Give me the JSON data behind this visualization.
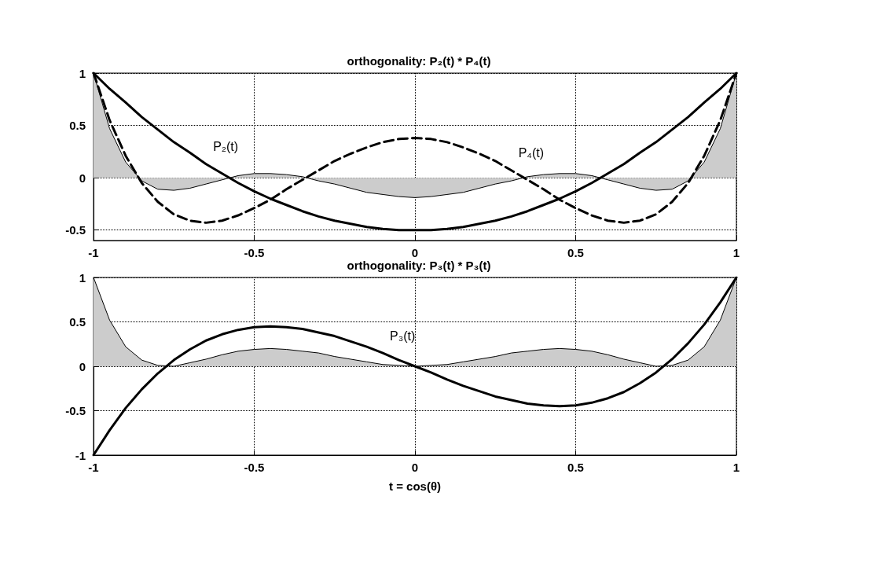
{
  "chart_data": [
    {
      "type": "line",
      "title": "orthogonality: P₂(t) * P₄(t)",
      "x": [
        -1,
        -0.95,
        -0.9,
        -0.85,
        -0.8,
        -0.75,
        -0.7,
        -0.65,
        -0.6,
        -0.55,
        -0.5,
        -0.45,
        -0.4,
        -0.35,
        -0.3,
        -0.25,
        -0.2,
        -0.15,
        -0.1,
        -0.05,
        0,
        0.05,
        0.1,
        0.15,
        0.2,
        0.25,
        0.3,
        0.35,
        0.4,
        0.45,
        0.5,
        0.55,
        0.6,
        0.65,
        0.7,
        0.75,
        0.8,
        0.85,
        0.9,
        0.95,
        1
      ],
      "series": [
        {
          "type": "area",
          "color": "#cccccc",
          "values": [
            1,
            0.47,
            0.15,
            -0.03,
            -0.11,
            -0.12,
            -0.1,
            -0.06,
            -0.02,
            0.02,
            0.04,
            0.04,
            0.03,
            0.01,
            -0.03,
            -0.06,
            -0.1,
            -0.14,
            -0.16,
            -0.18,
            -0.19,
            -0.18,
            -0.16,
            -0.14,
            -0.1,
            -0.06,
            -0.03,
            0.01,
            0.03,
            0.04,
            0.04,
            0.02,
            -0.02,
            -0.06,
            -0.1,
            -0.12,
            -0.11,
            -0.03,
            0.15,
            0.47,
            1
          ]
        },
        {
          "name": "P₂(t)",
          "color": "#000000",
          "line_style": "solid",
          "values": [
            1,
            0.85,
            0.72,
            0.58,
            0.46,
            0.34,
            0.24,
            0.13,
            0.04,
            -0.05,
            -0.13,
            -0.2,
            -0.26,
            -0.32,
            -0.37,
            -0.41,
            -0.44,
            -0.47,
            -0.49,
            -0.5,
            -0.5,
            -0.5,
            -0.49,
            -0.47,
            -0.44,
            -0.41,
            -0.37,
            -0.32,
            -0.26,
            -0.2,
            -0.13,
            -0.05,
            0.04,
            0.13,
            0.24,
            0.34,
            0.46,
            0.58,
            0.72,
            0.85,
            1
          ]
        },
        {
          "name": "P₄(t)",
          "color": "#000000",
          "line_style": "dashed",
          "values": [
            1,
            0.55,
            0.21,
            -0.05,
            -0.23,
            -0.35,
            -0.41,
            -0.43,
            -0.41,
            -0.36,
            -0.29,
            -0.21,
            -0.11,
            -0.02,
            0.07,
            0.16,
            0.23,
            0.29,
            0.34,
            0.37,
            0.38,
            0.37,
            0.34,
            0.29,
            0.23,
            0.16,
            0.07,
            -0.02,
            -0.11,
            -0.21,
            -0.29,
            -0.36,
            -0.41,
            -0.43,
            -0.41,
            -0.35,
            -0.23,
            -0.05,
            0.21,
            0.55,
            1
          ]
        }
      ],
      "xlim": [
        -1,
        1
      ],
      "xticks": [
        -1,
        -0.5,
        0,
        0.5,
        1
      ],
      "ylim": [
        -0.6,
        1
      ],
      "yticks": [
        -0.5,
        0,
        0.5,
        1
      ],
      "grid": true
    },
    {
      "type": "line",
      "title": "orthogonality: P₃(t) * P₃(t)",
      "xlabel": "t = cos(θ)",
      "x": [
        -1,
        -0.95,
        -0.9,
        -0.85,
        -0.8,
        -0.75,
        -0.7,
        -0.65,
        -0.6,
        -0.55,
        -0.5,
        -0.45,
        -0.4,
        -0.35,
        -0.3,
        -0.25,
        -0.2,
        -0.15,
        -0.1,
        -0.05,
        0,
        0.05,
        0.1,
        0.15,
        0.2,
        0.25,
        0.3,
        0.35,
        0.4,
        0.45,
        0.5,
        0.55,
        0.6,
        0.65,
        0.7,
        0.75,
        0.8,
        0.85,
        0.9,
        0.95,
        1
      ],
      "series": [
        {
          "type": "area",
          "color": "#cccccc",
          "values": [
            1,
            0.52,
            0.22,
            0.07,
            0.01,
            0,
            0.04,
            0.08,
            0.13,
            0.17,
            0.19,
            0.2,
            0.19,
            0.17,
            0.15,
            0.11,
            0.08,
            0.05,
            0.02,
            0.01,
            0,
            0.01,
            0.02,
            0.05,
            0.08,
            0.11,
            0.15,
            0.17,
            0.19,
            0.2,
            0.19,
            0.17,
            0.13,
            0.08,
            0.04,
            0,
            0.01,
            0.07,
            0.22,
            0.52,
            1
          ]
        },
        {
          "name": "P₃(t)",
          "color": "#000000",
          "line_style": "solid",
          "values": [
            -1,
            -0.72,
            -0.47,
            -0.26,
            -0.08,
            0.07,
            0.19,
            0.29,
            0.36,
            0.41,
            0.44,
            0.45,
            0.44,
            0.42,
            0.38,
            0.34,
            0.28,
            0.22,
            0.15,
            0.07,
            0,
            -0.07,
            -0.15,
            -0.22,
            -0.28,
            -0.34,
            -0.38,
            -0.42,
            -0.44,
            -0.45,
            -0.44,
            -0.41,
            -0.36,
            -0.29,
            -0.19,
            -0.07,
            0.08,
            0.26,
            0.47,
            0.72,
            1
          ]
        }
      ],
      "xlim": [
        -1,
        1
      ],
      "xticks": [
        -1,
        -0.5,
        0,
        0.5,
        1
      ],
      "ylim": [
        -1,
        1
      ],
      "yticks": [
        -1,
        -0.5,
        0,
        0.5,
        1
      ],
      "grid": true
    }
  ]
}
